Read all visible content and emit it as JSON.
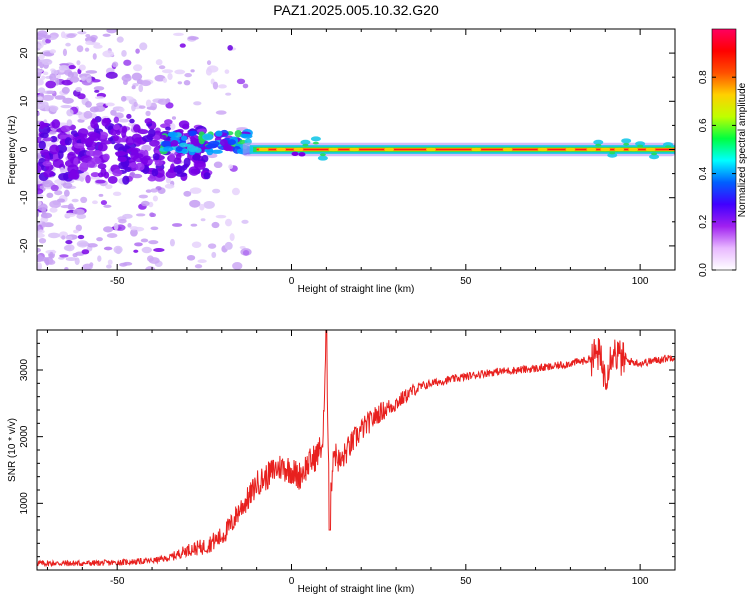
{
  "title": "PAZ1.2025.005.10.32.G20",
  "colors": {
    "snr_line": "#e8201e",
    "rline": "#ff1a12",
    "rline_edge": "#ffd400",
    "core_green": "#22dd55",
    "core_cyan": "#18c8e8",
    "violet": "#7a00e6",
    "lavender": "#d8c0f8"
  },
  "chart_data": [
    {
      "type": "heatmap",
      "title": "PAZ1.2025.005.10.32.G20",
      "xlabel": "Height of straight line (km)",
      "ylabel": "Frequency (Hz)",
      "xlim": [
        -73,
        110
      ],
      "ylim": [
        -25,
        25
      ],
      "xticks": [
        -50,
        0,
        50,
        100
      ],
      "yticks": [
        -20,
        -10,
        0,
        10,
        20
      ],
      "colorbar": {
        "label": "Normalized spectral amplitude",
        "range": [
          0,
          1
        ],
        "ticks": [
          0.0,
          0.2,
          0.4,
          0.6,
          0.8
        ],
        "colormap": [
          "#ffffff",
          "#e8b8ff",
          "#a020f0",
          "#4000ff",
          "#0060ff",
          "#00ffff",
          "#00ff40",
          "#c0ff00",
          "#ffd000",
          "#ff5000",
          "#ff0000",
          "#ff0060"
        ]
      },
      "description_of_content": "Narrow strong carrier at 0 Hz from about -10 km to 110 km; broadened noisy spectrum below -30 km"
    },
    {
      "type": "line",
      "xlabel": "Height of straight line (km)",
      "ylabel": "SNR (10 * v/v)",
      "xlim": [
        -73,
        110
      ],
      "ylim": [
        0,
        3600
      ],
      "xticks": [
        -50,
        0,
        50,
        100
      ],
      "yticks": [
        1000,
        2000,
        3000
      ],
      "series": [
        {
          "x": [
            -73,
            -60,
            -50,
            -40,
            -35,
            -32,
            -30,
            -25,
            -20,
            -17,
            -15,
            -12,
            -10,
            -7,
            -5,
            -3,
            0,
            2,
            5,
            7,
            8,
            9,
            10,
            11,
            12,
            14,
            16,
            18,
            20,
            25,
            30,
            35,
            40,
            45,
            50,
            55,
            60,
            65,
            70,
            75,
            80,
            85,
            88,
            90,
            92,
            95,
            100,
            105,
            110
          ],
          "values": [
            100,
            100,
            110,
            140,
            180,
            250,
            300,
            350,
            500,
            700,
            900,
            1100,
            1300,
            1400,
            1500,
            1550,
            1500,
            1400,
            1600,
            1700,
            1800,
            1900,
            3400,
            800,
            1800,
            1600,
            1800,
            1950,
            2100,
            2350,
            2500,
            2700,
            2800,
            2850,
            2900,
            2950,
            2980,
            3000,
            3020,
            3050,
            3100,
            3150,
            3250,
            2900,
            3300,
            3150,
            3100,
            3150,
            3200
          ],
          "noise_amplitude": 60
        }
      ]
    }
  ]
}
